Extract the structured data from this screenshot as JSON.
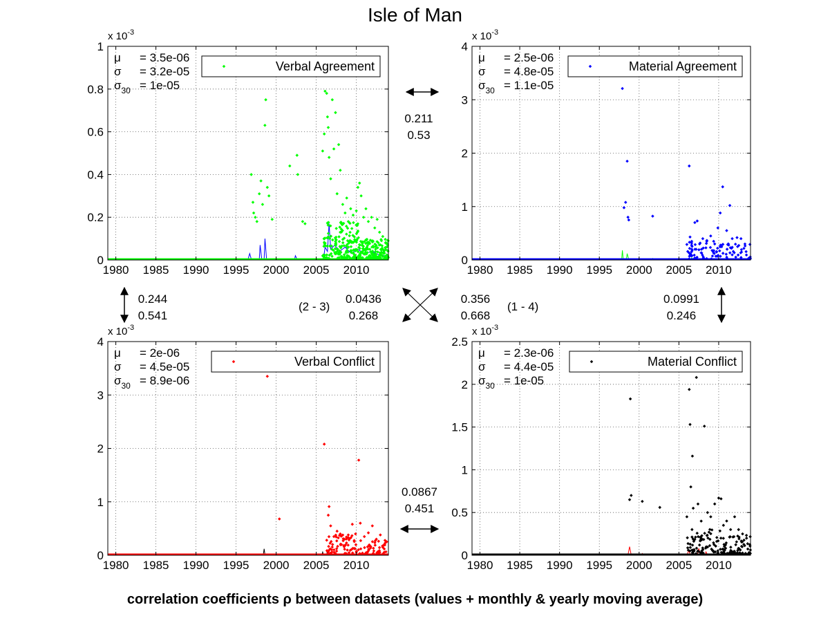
{
  "title": "Isle of Man",
  "footer": "correlation coefficients ρ between datasets (values + monthly & yearly moving average)",
  "colors": {
    "green": "#00ff00",
    "blue": "#0000ff",
    "red": "#ff0000",
    "black": "#000000"
  },
  "correlations": {
    "pair_1_2": {
      "monthly": "0.211",
      "yearly": "0.53"
    },
    "pair_1_3": {
      "monthly": "0.244",
      "yearly": "0.541"
    },
    "pair_2_3": {
      "label": "(2 - 3)",
      "monthly": "0.0436",
      "yearly": "0.268"
    },
    "pair_1_4": {
      "label": "(1 - 4)",
      "monthly": "0.356",
      "yearly": "0.668"
    },
    "pair_2_4": {
      "monthly": "0.0991",
      "yearly": "0.246"
    },
    "pair_3_4": {
      "monthly": "0.0867",
      "yearly": "0.451"
    }
  },
  "chart_data": [
    {
      "type": "scatter",
      "legend": "Verbal Agreement",
      "legend_placement": "top-right",
      "color": "#00ff00",
      "exponent_label": "x 10",
      "exponent": "-3",
      "stats": {
        "mu": "= 3.5e-06",
        "sigma": "= 3.2e-05",
        "sigma30": "= 1e-05"
      },
      "xlim": [
        1979,
        2014
      ],
      "ylim": [
        0,
        1
      ],
      "xticks": [
        1980,
        1985,
        1990,
        1995,
        2000,
        2005,
        2010
      ],
      "yticks": [
        0,
        0.2,
        0.4,
        0.6,
        0.8,
        1
      ],
      "ytick_labels": [
        "0",
        "0.2",
        "0.4",
        "0.6",
        "0.8",
        "1"
      ],
      "grid": true,
      "line_color": "#0000ff",
      "points": [
        [
          1996.9,
          0.4
        ],
        [
          1997.1,
          0.27
        ],
        [
          1997.2,
          0.22
        ],
        [
          1997.4,
          0.2
        ],
        [
          1997.6,
          0.18
        ],
        [
          1997.9,
          0.31
        ],
        [
          1998.1,
          0.37
        ],
        [
          1998.3,
          0.26
        ],
        [
          1998.6,
          0.63
        ],
        [
          1998.7,
          0.75
        ],
        [
          1998.9,
          0.34
        ],
        [
          1999.1,
          0.3
        ],
        [
          1999.5,
          0.19
        ],
        [
          2001.7,
          0.44
        ],
        [
          2002.6,
          0.49
        ],
        [
          2002.7,
          0.4
        ],
        [
          2003.3,
          0.18
        ],
        [
          2003.6,
          0.17
        ],
        [
          2005.8,
          0.51
        ],
        [
          2006.0,
          0.59
        ],
        [
          2006.1,
          0.79
        ],
        [
          2006.3,
          0.78
        ],
        [
          2006.4,
          0.67
        ],
        [
          2006.5,
          0.62
        ],
        [
          2006.6,
          0.48
        ],
        [
          2006.8,
          0.38
        ],
        [
          2007.0,
          0.75
        ],
        [
          2007.2,
          0.52
        ],
        [
          2007.4,
          0.69
        ],
        [
          2007.6,
          0.31
        ],
        [
          2007.8,
          0.54
        ],
        [
          2008.0,
          0.42
        ],
        [
          2008.3,
          0.26
        ],
        [
          2008.6,
          0.22
        ],
        [
          2008.8,
          0.29
        ],
        [
          2009.0,
          0.18
        ],
        [
          2009.3,
          0.24
        ],
        [
          2009.6,
          0.21
        ],
        [
          2010.0,
          0.23
        ],
        [
          2010.2,
          0.34
        ],
        [
          2010.4,
          0.36
        ],
        [
          2010.6,
          0.3
        ],
        [
          2010.9,
          0.2
        ],
        [
          2011.2,
          0.24
        ],
        [
          2011.5,
          0.18
        ],
        [
          2011.9,
          0.2
        ],
        [
          2012.3,
          0.15
        ],
        [
          2012.6,
          0.19
        ],
        [
          2012.9,
          0.13
        ],
        [
          2013.3,
          0.11
        ],
        [
          2013.7,
          0.08
        ]
      ],
      "line": [
        [
          1979,
          0.004
        ],
        [
          1996.5,
          0.004
        ],
        [
          1996.7,
          0.03
        ],
        [
          1996.9,
          0.004
        ],
        [
          1997.9,
          0.004
        ],
        [
          1998.0,
          0.07
        ],
        [
          1998.2,
          0.004
        ],
        [
          1998.5,
          0.004
        ],
        [
          1998.6,
          0.1
        ],
        [
          1998.8,
          0.004
        ],
        [
          2002.3,
          0.004
        ],
        [
          2002.4,
          0.02
        ],
        [
          2002.6,
          0.004
        ],
        [
          2005.9,
          0.004
        ],
        [
          2006.1,
          0.06
        ],
        [
          2006.4,
          0.04
        ],
        [
          2006.6,
          0.17
        ],
        [
          2006.8,
          0.05
        ],
        [
          2007.3,
          0.07
        ],
        [
          2007.9,
          0.04
        ],
        [
          2008.6,
          0.06
        ],
        [
          2009.4,
          0.03
        ],
        [
          2010.2,
          0.05
        ],
        [
          2011.0,
          0.03
        ],
        [
          2012.0,
          0.04
        ],
        [
          2013.0,
          0.02
        ],
        [
          2014,
          0.02
        ]
      ],
      "cluster": {
        "start": 2005.8,
        "end": 2014,
        "count": 320,
        "seed": 11,
        "maxA": 0.17,
        "maxB": 0.09,
        "split": 2010.3,
        "floor": 0.008
      }
    },
    {
      "type": "scatter",
      "legend": "Material Agreement",
      "legend_placement": "top-right",
      "color": "#0000ff",
      "exponent_label": "x 10",
      "exponent": "-3",
      "stats": {
        "mu": "= 2.5e-06",
        "sigma": "= 4.8e-05",
        "sigma30": "= 1.1e-05"
      },
      "xlim": [
        1979,
        2014
      ],
      "ylim": [
        0,
        4
      ],
      "xticks": [
        1980,
        1985,
        1990,
        1995,
        2000,
        2005,
        2010
      ],
      "yticks": [
        0,
        1,
        2,
        3,
        4
      ],
      "ytick_labels": [
        "0",
        "1",
        "2",
        "3",
        "4"
      ],
      "grid": true,
      "line_color": "#00ff00",
      "points": [
        [
          1997.9,
          3.21
        ],
        [
          1998.1,
          0.98
        ],
        [
          1998.3,
          1.08
        ],
        [
          1998.5,
          1.85
        ],
        [
          1998.6,
          0.8
        ],
        [
          1998.7,
          0.75
        ],
        [
          2001.7,
          0.82
        ],
        [
          2006.3,
          1.76
        ],
        [
          2006.4,
          0.43
        ],
        [
          2007.0,
          0.7
        ],
        [
          2007.3,
          0.73
        ],
        [
          2007.6,
          0.3
        ],
        [
          2008.0,
          0.4
        ],
        [
          2008.5,
          0.35
        ],
        [
          2009.0,
          0.45
        ],
        [
          2009.5,
          0.3
        ],
        [
          2009.9,
          0.6
        ],
        [
          2010.2,
          0.88
        ],
        [
          2010.5,
          1.37
        ],
        [
          2011.0,
          0.55
        ],
        [
          2011.4,
          1.02
        ],
        [
          2011.7,
          0.4
        ],
        [
          2012.3,
          0.42
        ],
        [
          2012.8,
          0.4
        ],
        [
          2013.3,
          0.3
        ]
      ],
      "line": [
        [
          1979,
          0.01
        ],
        [
          1997.8,
          0.01
        ],
        [
          1997.9,
          0.18
        ],
        [
          1998.0,
          0.01
        ],
        [
          1998.4,
          0.01
        ],
        [
          1998.5,
          0.12
        ],
        [
          1998.7,
          0.01
        ],
        [
          2001.6,
          0.01
        ],
        [
          2001.7,
          0.03
        ],
        [
          2001.8,
          0.01
        ],
        [
          2006.5,
          0.01
        ],
        [
          2006.6,
          0.04
        ],
        [
          2006.9,
          0.01
        ],
        [
          2014,
          0.01
        ]
      ],
      "cluster": {
        "start": 2006.0,
        "end": 2014,
        "count": 95,
        "seed": 23,
        "maxA": 0.35,
        "maxB": 0.3,
        "split": 2009.5,
        "floor": 0.02
      }
    },
    {
      "type": "scatter",
      "legend": "Verbal Conflict",
      "legend_placement": "top-right",
      "color": "#ff0000",
      "exponent_label": "x 10",
      "exponent": "-3",
      "stats": {
        "mu": "= 2e-06",
        "sigma": "= 4.5e-05",
        "sigma30": "= 8.9e-06"
      },
      "xlim": [
        1979,
        2014
      ],
      "ylim": [
        0,
        4
      ],
      "xticks": [
        1980,
        1985,
        1990,
        1995,
        2000,
        2005,
        2010
      ],
      "yticks": [
        0,
        1,
        2,
        3,
        4
      ],
      "ytick_labels": [
        "0",
        "1",
        "2",
        "3",
        "4"
      ],
      "grid": true,
      "line_color": "#000000",
      "points": [
        [
          1998.9,
          3.35
        ],
        [
          2000.4,
          0.68
        ],
        [
          2006.0,
          2.08
        ],
        [
          2006.5,
          0.75
        ],
        [
          2006.6,
          0.91
        ],
        [
          2006.8,
          0.55
        ],
        [
          2007.2,
          0.35
        ],
        [
          2007.6,
          0.45
        ],
        [
          2008.0,
          0.4
        ],
        [
          2008.5,
          0.3
        ],
        [
          2009.0,
          0.38
        ],
        [
          2009.5,
          0.58
        ],
        [
          2009.9,
          0.4
        ],
        [
          2010.3,
          1.78
        ],
        [
          2010.5,
          0.6
        ],
        [
          2011.0,
          0.35
        ],
        [
          2011.5,
          0.42
        ],
        [
          2012.0,
          0.55
        ],
        [
          2012.5,
          0.3
        ],
        [
          2013.0,
          0.38
        ],
        [
          2013.5,
          0.2
        ]
      ],
      "line": [
        [
          1979,
          0.01
        ],
        [
          1998.4,
          0.01
        ],
        [
          1998.5,
          0.12
        ],
        [
          1998.6,
          0.01
        ],
        [
          2005.7,
          0.01
        ],
        [
          2005.8,
          0.06
        ],
        [
          2005.9,
          0.01
        ],
        [
          2006.3,
          0.01
        ],
        [
          2006.4,
          0.08
        ],
        [
          2006.5,
          0.01
        ],
        [
          2014,
          0.01
        ]
      ],
      "cluster": {
        "start": 2006.2,
        "end": 2014,
        "count": 110,
        "seed": 37,
        "maxA": 0.35,
        "maxB": 0.25,
        "split": 2010.0,
        "floor": 0.03
      }
    },
    {
      "type": "scatter",
      "legend": "Material Conflict",
      "legend_placement": "top-right",
      "color": "#000000",
      "exponent_label": "x 10",
      "exponent": "-3",
      "stats": {
        "mu": "= 2.3e-06",
        "sigma": "= 4.4e-05",
        "sigma30": "= 1e-05"
      },
      "xlim": [
        1979,
        2014
      ],
      "ylim": [
        0,
        2.5
      ],
      "xticks": [
        1980,
        1985,
        1990,
        1995,
        2000,
        2005,
        2010
      ],
      "yticks": [
        0,
        0.5,
        1,
        1.5,
        2,
        2.5
      ],
      "ytick_labels": [
        "0",
        "0.5",
        "1",
        "1.5",
        "2",
        "2.5"
      ],
      "grid": true,
      "line_color": "#ff0000",
      "points": [
        [
          1998.9,
          1.83
        ],
        [
          1998.8,
          0.65
        ],
        [
          1999.0,
          0.7
        ],
        [
          2000.4,
          0.63
        ],
        [
          2002.6,
          0.56
        ],
        [
          2006.0,
          0.45
        ],
        [
          2006.3,
          1.94
        ],
        [
          2006.4,
          1.53
        ],
        [
          2006.5,
          0.8
        ],
        [
          2006.7,
          1.16
        ],
        [
          2006.8,
          0.55
        ],
        [
          2007.2,
          2.08
        ],
        [
          2007.4,
          0.6
        ],
        [
          2007.8,
          0.4
        ],
        [
          2008.2,
          1.51
        ],
        [
          2008.6,
          0.5
        ],
        [
          2009.0,
          0.45
        ],
        [
          2009.5,
          0.6
        ],
        [
          2010.0,
          0.67
        ],
        [
          2010.3,
          0.66
        ],
        [
          2010.6,
          0.35
        ],
        [
          2011.0,
          0.4
        ],
        [
          2011.5,
          0.3
        ],
        [
          2012.0,
          0.45
        ],
        [
          2012.5,
          0.3
        ],
        [
          2013.0,
          0.25
        ],
        [
          2013.5,
          0.2
        ]
      ],
      "line": [
        [
          1979,
          0.005
        ],
        [
          1998.6,
          0.005
        ],
        [
          1998.8,
          0.1
        ],
        [
          1999.0,
          0.005
        ],
        [
          2000.3,
          0.005
        ],
        [
          2000.4,
          0.02
        ],
        [
          2000.5,
          0.005
        ],
        [
          2006.0,
          0.005
        ],
        [
          2006.2,
          0.05
        ],
        [
          2006.5,
          0.005
        ],
        [
          2007.3,
          0.005
        ],
        [
          2007.5,
          0.08
        ],
        [
          2007.7,
          0.005
        ],
        [
          2008.3,
          0.005
        ],
        [
          2008.4,
          0.04
        ],
        [
          2008.6,
          0.005
        ],
        [
          2014,
          0.005
        ]
      ],
      "cluster": {
        "start": 2006.0,
        "end": 2014,
        "count": 140,
        "seed": 53,
        "maxA": 0.3,
        "maxB": 0.22,
        "split": 2010.2,
        "floor": 0.02
      }
    }
  ]
}
